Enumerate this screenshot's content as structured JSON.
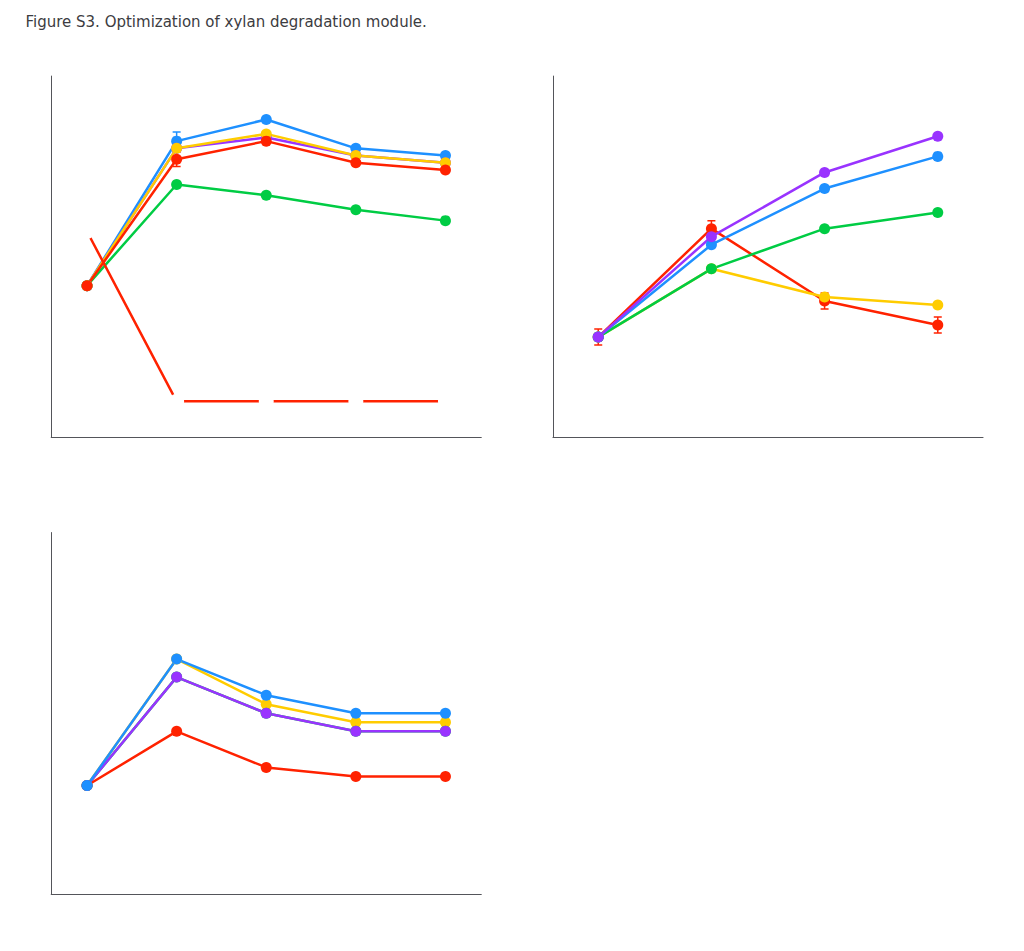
{
  "chart_data": [
    {
      "type": "line",
      "title": "Figure S3. Optimization of xylan degradation module.",
      "x": [
        1,
        2,
        3,
        4,
        5
      ],
      "xlim": [
        0.6,
        5.4
      ],
      "ylim": [
        0.0,
        1.0
      ],
      "tick_labels": false,
      "grid": false,
      "series": [
        {
          "color": "#1e90ff",
          "marker": "circle",
          "values": [
            0.42,
            0.82,
            0.88,
            0.8,
            0.78
          ],
          "errors": [
            0,
            0.025,
            0,
            0,
            0
          ]
        },
        {
          "color": "#9933ff",
          "marker": "circle",
          "values": [
            0.42,
            0.8,
            0.83,
            0.78,
            0.76
          ]
        },
        {
          "color": "#00cc44",
          "marker": "circle",
          "values": [
            0.42,
            0.7,
            0.67,
            0.63,
            0.6
          ]
        },
        {
          "color": "#ffcc00",
          "marker": "circle",
          "values": [
            0.42,
            0.8,
            0.84,
            0.78,
            0.76
          ]
        },
        {
          "color": "#ff2200",
          "marker": "circle",
          "values": [
            0.42,
            0.77,
            0.82,
            0.76,
            0.74
          ],
          "errors": [
            0,
            0.02,
            0,
            0,
            0
          ]
        },
        {
          "color": "#ff2200",
          "marker": "hollow",
          "values": [
            0.57,
            0.1,
            0.1,
            0.1,
            0.1
          ]
        }
      ]
    },
    {
      "type": "line",
      "x": [
        1,
        2,
        3,
        4
      ],
      "xlim": [
        0.6,
        4.4
      ],
      "ylim": [
        0.1,
        1.0
      ],
      "tick_labels": false,
      "grid": false,
      "series": [
        {
          "color": "#ff2200",
          "marker": "circle",
          "values": [
            0.35,
            0.62,
            0.44,
            0.38
          ],
          "errors": [
            0.02,
            0.02,
            0.02,
            0.02
          ]
        },
        {
          "color": "#ffcc00",
          "marker": "circle",
          "values": [
            0.35,
            0.52,
            0.45,
            0.43
          ]
        },
        {
          "color": "#00cc44",
          "marker": "circle",
          "values": [
            0.35,
            0.52,
            0.62,
            0.66
          ]
        },
        {
          "color": "#1e90ff",
          "marker": "circle",
          "values": [
            0.35,
            0.58,
            0.72,
            0.8
          ]
        },
        {
          "color": "#9933ff",
          "marker": "circle",
          "values": [
            0.35,
            0.6,
            0.76,
            0.85
          ]
        }
      ]
    },
    {
      "type": "line",
      "x": [
        1,
        2,
        3,
        4,
        5
      ],
      "xlim": [
        0.6,
        5.4
      ],
      "ylim": [
        0.2,
        0.6
      ],
      "tick_labels": false,
      "grid": false,
      "series": [
        {
          "color": "#ff2200",
          "marker": "circle",
          "values": [
            0.32,
            0.38,
            0.34,
            0.33,
            0.33
          ]
        },
        {
          "color": "#ffcc00",
          "marker": "circle",
          "values": [
            0.32,
            0.46,
            0.41,
            0.39,
            0.39
          ]
        },
        {
          "color": "#00cc44",
          "marker": "circle",
          "values": [
            0.32,
            0.44,
            0.4,
            0.38,
            0.38
          ]
        },
        {
          "color": "#9933ff",
          "marker": "circle",
          "values": [
            0.32,
            0.44,
            0.4,
            0.38,
            0.38
          ]
        },
        {
          "color": "#1e90ff",
          "marker": "circle",
          "values": [
            0.32,
            0.46,
            0.42,
            0.4,
            0.4
          ]
        }
      ]
    }
  ]
}
